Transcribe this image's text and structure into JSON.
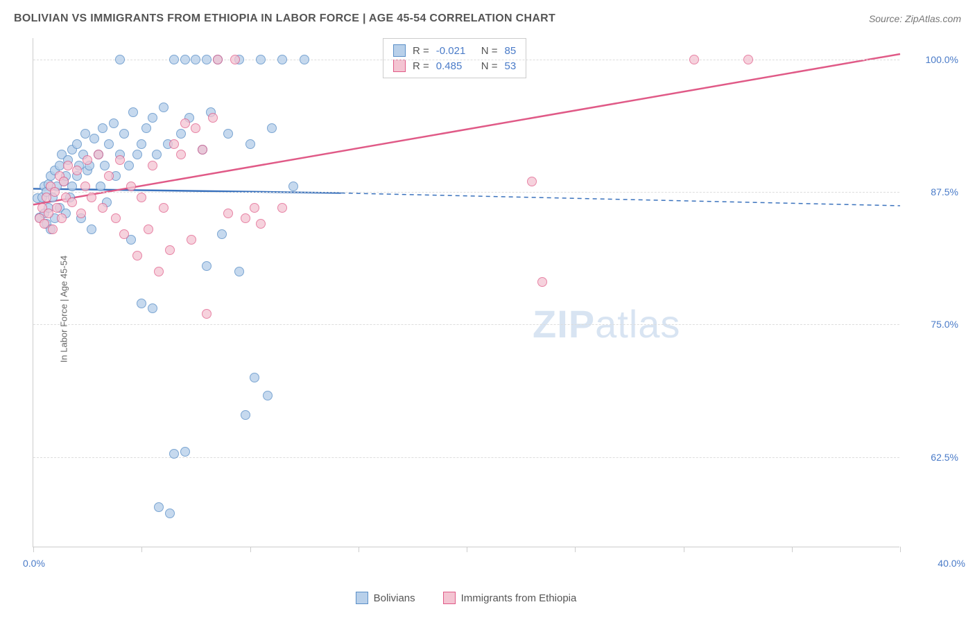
{
  "title": "BOLIVIAN VS IMMIGRANTS FROM ETHIOPIA IN LABOR FORCE | AGE 45-54 CORRELATION CHART",
  "source": "Source: ZipAtlas.com",
  "y_axis_title": "In Labor Force | Age 45-54",
  "watermark_bold": "ZIP",
  "watermark_light": "atlas",
  "chart": {
    "type": "scatter",
    "xlim": [
      0,
      40
    ],
    "ylim": [
      54,
      102
    ],
    "x_start_label": "0.0%",
    "x_end_label": "40.0%",
    "x_ticks": [
      0,
      5,
      10,
      15,
      20,
      25,
      30,
      35,
      40
    ],
    "y_gridlines": [
      62.5,
      75.0,
      87.5,
      100.0
    ],
    "y_labels": [
      "62.5%",
      "75.0%",
      "87.5%",
      "100.0%"
    ],
    "background_color": "#ffffff",
    "grid_color": "#dddddd",
    "axis_color": "#cccccc",
    "tick_color": "#cccccc",
    "label_color": "#4a7bc8",
    "axis_title_color": "#666666",
    "marker_radius": 7,
    "marker_border_width": 1.5,
    "trend_line_width": 2.5,
    "dash_pattern": "6,5"
  },
  "series": [
    {
      "name": "Bolivians",
      "legend_label": "Bolivians",
      "fill": "#b8d0ea",
      "stroke": "#5a8fc7",
      "fill_opacity": 0.55,
      "R": "-0.021",
      "N": "85",
      "trend": {
        "x1": 0,
        "y1": 87.8,
        "x2_solid": 14.2,
        "y2_solid": 87.4,
        "x2_dash": 40,
        "y2_dash": 86.2,
        "color": "#3a72bd"
      },
      "points": [
        [
          0.2,
          86.9
        ],
        [
          0.3,
          85.1
        ],
        [
          0.4,
          87.0
        ],
        [
          0.5,
          85.5
        ],
        [
          0.5,
          88.0
        ],
        [
          0.6,
          84.5
        ],
        [
          0.6,
          87.5
        ],
        [
          0.7,
          86.0
        ],
        [
          0.7,
          88.2
        ],
        [
          0.8,
          89.0
        ],
        [
          0.8,
          84.0
        ],
        [
          0.9,
          87.0
        ],
        [
          1.0,
          89.5
        ],
        [
          1.0,
          85.0
        ],
        [
          1.1,
          88.0
        ],
        [
          1.2,
          90.0
        ],
        [
          1.2,
          86.0
        ],
        [
          1.3,
          91.0
        ],
        [
          1.4,
          88.5
        ],
        [
          1.5,
          89.0
        ],
        [
          1.5,
          85.5
        ],
        [
          1.6,
          90.5
        ],
        [
          1.7,
          87.0
        ],
        [
          1.8,
          91.5
        ],
        [
          1.8,
          88.0
        ],
        [
          2.0,
          92.0
        ],
        [
          2.0,
          89.0
        ],
        [
          2.1,
          90.0
        ],
        [
          2.2,
          85.0
        ],
        [
          2.3,
          91.0
        ],
        [
          2.4,
          93.0
        ],
        [
          2.5,
          89.5
        ],
        [
          2.6,
          90.0
        ],
        [
          2.7,
          84.0
        ],
        [
          2.8,
          92.5
        ],
        [
          3.0,
          91.0
        ],
        [
          3.1,
          88.0
        ],
        [
          3.2,
          93.5
        ],
        [
          3.3,
          90.0
        ],
        [
          3.4,
          86.5
        ],
        [
          3.5,
          92.0
        ],
        [
          3.7,
          94.0
        ],
        [
          3.8,
          89.0
        ],
        [
          4.0,
          91.0
        ],
        [
          4.0,
          100.0
        ],
        [
          4.2,
          93.0
        ],
        [
          4.4,
          90.0
        ],
        [
          4.5,
          83.0
        ],
        [
          4.6,
          95.0
        ],
        [
          4.8,
          91.0
        ],
        [
          5.0,
          92.0
        ],
        [
          5.0,
          77.0
        ],
        [
          5.2,
          93.5
        ],
        [
          5.5,
          94.5
        ],
        [
          5.5,
          76.5
        ],
        [
          5.7,
          91.0
        ],
        [
          5.8,
          57.8
        ],
        [
          6.0,
          95.5
        ],
        [
          6.2,
          92.0
        ],
        [
          6.3,
          57.2
        ],
        [
          6.5,
          100.0
        ],
        [
          6.5,
          62.8
        ],
        [
          6.8,
          93.0
        ],
        [
          7.0,
          100.0
        ],
        [
          7.0,
          63.0
        ],
        [
          7.2,
          94.5
        ],
        [
          7.5,
          100.0
        ],
        [
          7.8,
          91.5
        ],
        [
          8.0,
          100.0
        ],
        [
          8.0,
          80.5
        ],
        [
          8.2,
          95.0
        ],
        [
          8.5,
          100.0
        ],
        [
          8.7,
          83.5
        ],
        [
          9.0,
          93.0
        ],
        [
          9.5,
          100.0
        ],
        [
          9.5,
          80.0
        ],
        [
          9.8,
          66.5
        ],
        [
          10.0,
          92.0
        ],
        [
          10.2,
          70.0
        ],
        [
          10.5,
          100.0
        ],
        [
          10.8,
          68.3
        ],
        [
          11.0,
          93.5
        ],
        [
          11.5,
          100.0
        ],
        [
          12.0,
          88.0
        ],
        [
          12.5,
          100.0
        ]
      ]
    },
    {
      "name": "Immigrants from Ethiopia",
      "legend_label": "Immigrants from Ethiopia",
      "fill": "#f4c4d2",
      "stroke": "#e05a87",
      "fill_opacity": 0.5,
      "R": "0.485",
      "N": "53",
      "trend": {
        "x1": 0,
        "y1": 86.3,
        "x2_solid": 40,
        "y2_solid": 100.5,
        "x2_dash": 40,
        "y2_dash": 100.5,
        "color": "#e05a87"
      },
      "points": [
        [
          0.3,
          85.0
        ],
        [
          0.4,
          86.0
        ],
        [
          0.5,
          84.5
        ],
        [
          0.6,
          87.0
        ],
        [
          0.7,
          85.5
        ],
        [
          0.8,
          88.0
        ],
        [
          0.9,
          84.0
        ],
        [
          1.0,
          87.5
        ],
        [
          1.1,
          86.0
        ],
        [
          1.2,
          89.0
        ],
        [
          1.3,
          85.0
        ],
        [
          1.4,
          88.5
        ],
        [
          1.5,
          87.0
        ],
        [
          1.6,
          90.0
        ],
        [
          1.8,
          86.5
        ],
        [
          2.0,
          89.5
        ],
        [
          2.2,
          85.5
        ],
        [
          2.4,
          88.0
        ],
        [
          2.5,
          90.5
        ],
        [
          2.7,
          87.0
        ],
        [
          3.0,
          91.0
        ],
        [
          3.2,
          86.0
        ],
        [
          3.5,
          89.0
        ],
        [
          3.8,
          85.0
        ],
        [
          4.0,
          90.5
        ],
        [
          4.2,
          83.5
        ],
        [
          4.5,
          88.0
        ],
        [
          4.8,
          81.5
        ],
        [
          5.0,
          87.0
        ],
        [
          5.3,
          84.0
        ],
        [
          5.5,
          90.0
        ],
        [
          5.8,
          80.0
        ],
        [
          6.0,
          86.0
        ],
        [
          6.3,
          82.0
        ],
        [
          6.5,
          92.0
        ],
        [
          6.8,
          91.0
        ],
        [
          7.0,
          94.0
        ],
        [
          7.3,
          83.0
        ],
        [
          7.5,
          93.5
        ],
        [
          7.8,
          91.5
        ],
        [
          8.0,
          76.0
        ],
        [
          8.3,
          94.5
        ],
        [
          8.5,
          100.0
        ],
        [
          9.0,
          85.5
        ],
        [
          9.3,
          100.0
        ],
        [
          9.8,
          85.0
        ],
        [
          10.2,
          86.0
        ],
        [
          10.5,
          84.5
        ],
        [
          11.5,
          86.0
        ],
        [
          23.0,
          88.5
        ],
        [
          23.5,
          79.0
        ],
        [
          30.5,
          100.0
        ],
        [
          33.0,
          100.0
        ]
      ]
    }
  ],
  "stats_labels": {
    "R_prefix": "R  =",
    "N_prefix": "N  ="
  }
}
